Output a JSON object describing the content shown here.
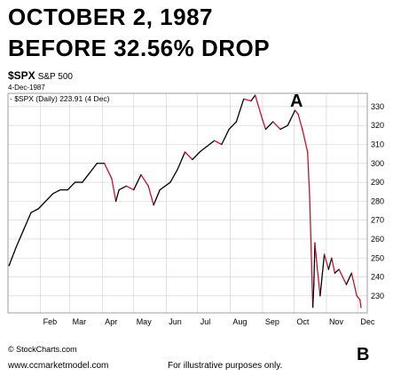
{
  "headline": {
    "line1": "OCTOBER 2, 1987",
    "line2": "BEFORE 32.56% DROP"
  },
  "symbol": "$SPX",
  "symbol_name": "S&P 500",
  "as_of": "4-Dec-1987",
  "legend_text": "- $SPX (Daily) 223.91 (4 Dec)",
  "footer": {
    "copyright": "© StockCharts.com",
    "site": "www.ccmarketmodel.com",
    "disclaimer": "For illustrative purposes only."
  },
  "annotations": {
    "a": "A",
    "b": "B"
  },
  "colors": {
    "up": "#000000",
    "down": "#c8102e",
    "grid": "#cfcfcf",
    "frame": "#888888"
  },
  "chart_data": {
    "type": "line",
    "title": "$SPX S&P 500",
    "series": [
      {
        "name": "$SPX (Daily)",
        "x": [
          "1987-01-02",
          "1987-01-09",
          "1987-01-16",
          "1987-01-23",
          "1987-01-30",
          "1987-02-06",
          "1987-02-13",
          "1987-02-20",
          "1987-02-27",
          "1987-03-06",
          "1987-03-13",
          "1987-03-20",
          "1987-03-27",
          "1987-04-03",
          "1987-04-10",
          "1987-04-14",
          "1987-04-17",
          "1987-04-24",
          "1987-05-01",
          "1987-05-08",
          "1987-05-15",
          "1987-05-20",
          "1987-05-26",
          "1987-06-05",
          "1987-06-12",
          "1987-06-19",
          "1987-06-26",
          "1987-07-03",
          "1987-07-10",
          "1987-07-17",
          "1987-07-24",
          "1987-07-31",
          "1987-08-07",
          "1987-08-14",
          "1987-08-21",
          "1987-08-25",
          "1987-09-01",
          "1987-09-04",
          "1987-09-11",
          "1987-09-18",
          "1987-09-25",
          "1987-10-02",
          "1987-10-05",
          "1987-10-09",
          "1987-10-14",
          "1987-10-16",
          "1987-10-19",
          "1987-10-20",
          "1987-10-21",
          "1987-10-23",
          "1987-10-26",
          "1987-10-30",
          "1987-11-03",
          "1987-11-06",
          "1987-11-09",
          "1987-11-13",
          "1987-11-20",
          "1987-11-25",
          "1987-11-30",
          "1987-12-03",
          "1987-12-04"
        ],
        "values": [
          246,
          256,
          265,
          274,
          276,
          280,
          284,
          286,
          286,
          290,
          290,
          295,
          300,
          300,
          292,
          280,
          286,
          288,
          286,
          294,
          288,
          278,
          286,
          290,
          297,
          306,
          302,
          306,
          309,
          312,
          310,
          318,
          322,
          334,
          333,
          336,
          323,
          318,
          322,
          318,
          320,
          328,
          326,
          318,
          306,
          282,
          224,
          236,
          258,
          246,
          230,
          252,
          244,
          250,
          242,
          244,
          236,
          242,
          230,
          228,
          223.91
        ]
      }
    ],
    "xlabel": "",
    "ylabel": "",
    "x_tick_labels": [
      "Feb",
      "Mar",
      "Apr",
      "May",
      "Jun",
      "Jul",
      "Aug",
      "Sep",
      "Oct",
      "Nov",
      "Dec"
    ],
    "x_tick_dates": [
      "1987-02-01",
      "1987-03-01",
      "1987-04-01",
      "1987-05-01",
      "1987-06-01",
      "1987-07-01",
      "1987-08-01",
      "1987-09-01",
      "1987-10-01",
      "1987-11-01",
      "1987-12-01"
    ],
    "y_ticks": [
      230,
      240,
      250,
      260,
      270,
      280,
      290,
      300,
      310,
      320,
      330
    ],
    "ylim": [
      221,
      337
    ],
    "xlim": [
      "1987-01-01",
      "1987-12-10"
    ],
    "grid": true,
    "legend_placement": "top-left",
    "y_axis_side": "right"
  }
}
